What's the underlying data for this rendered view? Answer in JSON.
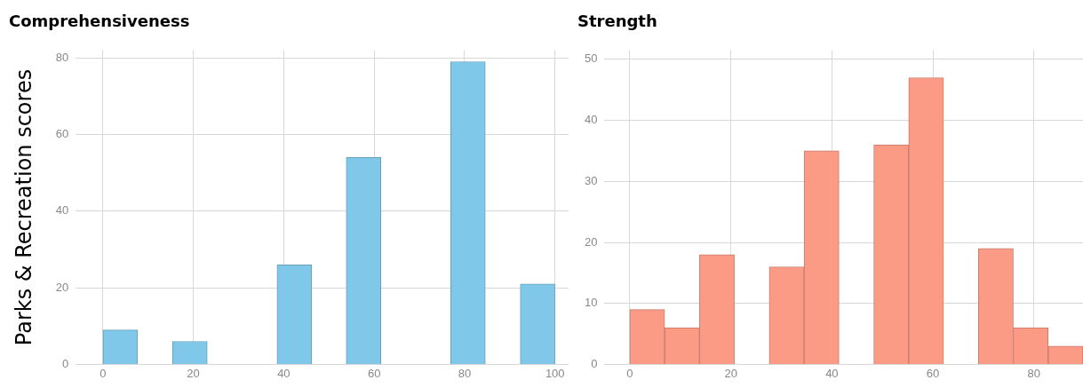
{
  "chart_data": [
    {
      "type": "histogram",
      "title": "Comprehensiveness",
      "ylabel": "Parks & Recreation scores",
      "color": "#7fc8ea",
      "bins": [
        0,
        7.7,
        15.4,
        23.1,
        30.8,
        38.5,
        46.2,
        53.8,
        61.5,
        69.2,
        76.9,
        84.6,
        92.3,
        100
      ],
      "values": [
        9,
        0,
        6,
        0,
        0,
        26,
        0,
        54,
        0,
        0,
        79,
        0,
        21
      ],
      "xlim": [
        -6,
        103
      ],
      "xticks": [
        0,
        20,
        40,
        60,
        80,
        100
      ],
      "ylim": [
        0,
        82
      ],
      "yticks": [
        0,
        20,
        40,
        60,
        80
      ],
      "grid": true
    },
    {
      "type": "histogram",
      "title": "Strength",
      "color": "#fb9a85",
      "bins": [
        0,
        6.9,
        13.8,
        20.7,
        27.6,
        34.5,
        41.4,
        48.3,
        55.2,
        62.1,
        69,
        75.9,
        82.8,
        89.7
      ],
      "values": [
        9,
        6,
        18,
        0,
        16,
        35,
        0,
        36,
        47,
        0,
        19,
        6,
        3
      ],
      "xlim": [
        -5,
        89.7
      ],
      "xticks": [
        0,
        20,
        40,
        60,
        80
      ],
      "ylim": [
        0,
        51.5
      ],
      "yticks": [
        0,
        10,
        20,
        30,
        40,
        50
      ],
      "grid": true
    }
  ]
}
